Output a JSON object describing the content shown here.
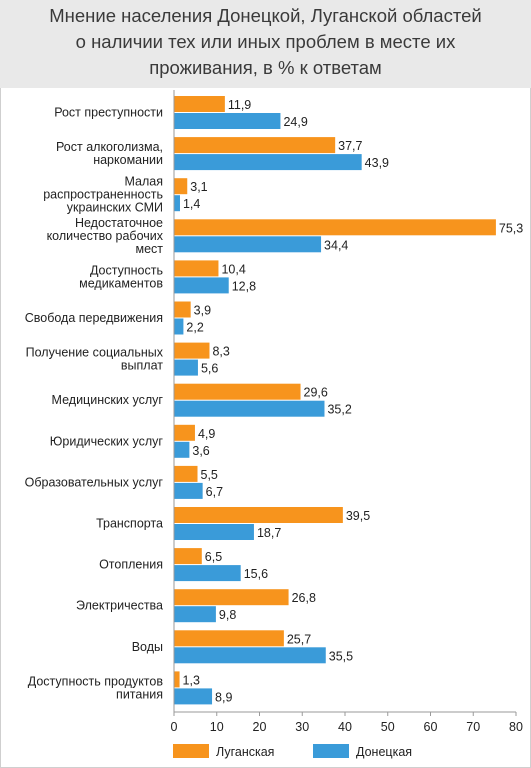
{
  "chart_data": {
    "type": "bar",
    "orientation": "horizontal",
    "title": "Мнение населения Донецкой, Луганской областей\nо наличии тех или иных проблем в месте их\nпроживания, в % к ответам",
    "categories": [
      [
        "Рост преступности"
      ],
      [
        "Рост алкоголизма,",
        "наркомании"
      ],
      [
        "Малая",
        "распространенность",
        "украинских СМИ"
      ],
      [
        "Недостаточное",
        "количество рабочих",
        "мест"
      ],
      [
        "Доступность",
        "медикаментов"
      ],
      [
        "Свобода передвижения"
      ],
      [
        "Получение социальных",
        "выплат"
      ],
      [
        "Медицинских услуг"
      ],
      [
        "Юридических услуг"
      ],
      [
        "Образовательных услуг"
      ],
      [
        "Транспорта"
      ],
      [
        "Отопления"
      ],
      [
        "Электричества"
      ],
      [
        "Воды"
      ],
      [
        "Доступность продуктов",
        "питания"
      ]
    ],
    "series": [
      {
        "name": "Луганская",
        "color": "#f7941d",
        "values": [
          11.9,
          37.7,
          3.1,
          75.3,
          10.4,
          3.9,
          8.3,
          29.6,
          4.9,
          5.5,
          39.5,
          6.5,
          26.8,
          25.7,
          1.3
        ],
        "labels": [
          "11,9",
          "37,7",
          "3,1",
          "75,3",
          "10,4",
          "3,9",
          "8,3",
          "29,6",
          "4,9",
          "5,5",
          "39,5",
          "6,5",
          "26,8",
          "25,7",
          "1,3"
        ]
      },
      {
        "name": "Донецкая",
        "color": "#3a9bd9",
        "values": [
          24.9,
          43.9,
          1.4,
          34.4,
          12.8,
          2.2,
          5.6,
          35.2,
          3.6,
          6.7,
          18.7,
          15.6,
          9.8,
          35.5,
          8.9
        ],
        "labels": [
          "24,9",
          "43,9",
          "1,4",
          "34,4",
          "12,8",
          "2,2",
          "5,6",
          "35,2",
          "3,6",
          "6,7",
          "18,7",
          "15,6",
          "9,8",
          "35,5",
          "8,9"
        ]
      }
    ],
    "xlim": [
      0,
      80
    ],
    "xticks": [
      0,
      10,
      20,
      30,
      40,
      50,
      60,
      70,
      80
    ],
    "grid": false,
    "legend_position": "bottom"
  }
}
